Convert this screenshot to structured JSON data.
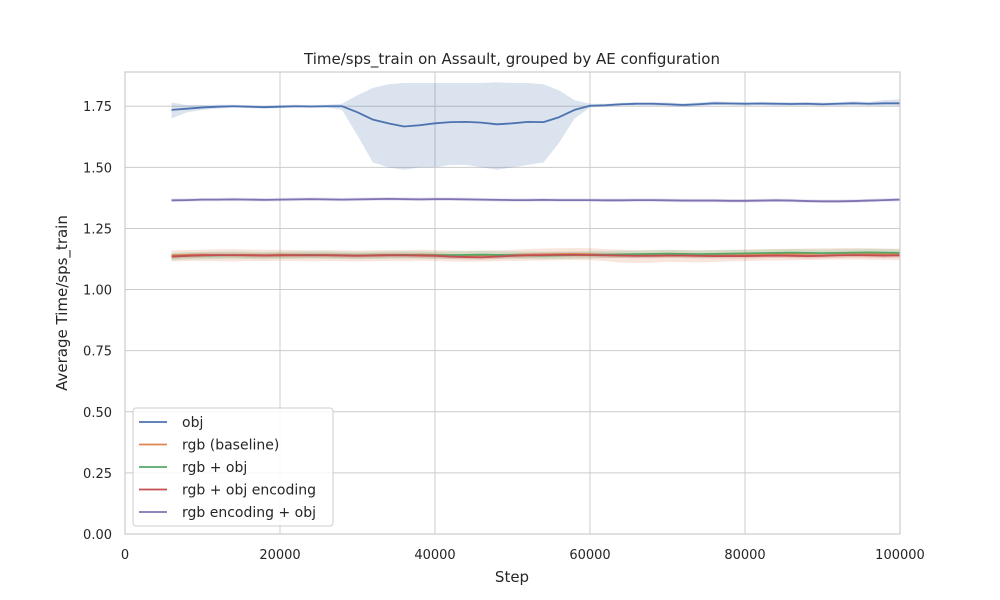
{
  "chart_data": {
    "type": "line",
    "title": "Time/sps_train on Assault, grouped by AE configuration",
    "xlabel": "Step",
    "ylabel": "Average Time/sps_train",
    "xlim": [
      0,
      100000
    ],
    "ylim": [
      0,
      1.89
    ],
    "xticks": [
      0,
      20000,
      40000,
      60000,
      80000,
      100000
    ],
    "xtick_labels": [
      "0",
      "20000",
      "40000",
      "60000",
      "80000",
      "100000"
    ],
    "yticks": [
      0.0,
      0.25,
      0.5,
      0.75,
      1.0,
      1.25,
      1.5,
      1.75
    ],
    "ytick_labels": [
      "0.00",
      "0.25",
      "0.50",
      "0.75",
      "1.00",
      "1.25",
      "1.50",
      "1.75"
    ],
    "grid": true,
    "legend_position": "lower-left",
    "x": [
      6000,
      8000,
      10000,
      12000,
      14000,
      16000,
      18000,
      20000,
      22000,
      24000,
      26000,
      28000,
      30000,
      32000,
      34000,
      36000,
      38000,
      40000,
      42000,
      44000,
      46000,
      48000,
      50000,
      52000,
      54000,
      56000,
      58000,
      60000,
      62000,
      64000,
      66000,
      68000,
      70000,
      72000,
      74000,
      76000,
      78000,
      80000,
      82000,
      84000,
      86000,
      88000,
      90000,
      92000,
      94000,
      96000,
      98000,
      100000
    ],
    "series": [
      {
        "name": "obj",
        "color": "#4c72b0",
        "values": [
          1.735,
          1.74,
          1.745,
          1.748,
          1.75,
          1.748,
          1.746,
          1.748,
          1.75,
          1.749,
          1.75,
          1.75,
          1.725,
          1.695,
          1.68,
          1.667,
          1.672,
          1.68,
          1.685,
          1.686,
          1.683,
          1.676,
          1.68,
          1.686,
          1.685,
          1.705,
          1.735,
          1.752,
          1.754,
          1.758,
          1.76,
          1.76,
          1.758,
          1.755,
          1.758,
          1.762,
          1.761,
          1.76,
          1.761,
          1.76,
          1.759,
          1.76,
          1.758,
          1.76,
          1.762,
          1.76,
          1.762,
          1.762
        ],
        "lower": [
          1.7,
          1.725,
          1.735,
          1.74,
          1.745,
          1.742,
          1.74,
          1.742,
          1.745,
          1.744,
          1.745,
          1.735,
          1.63,
          1.52,
          1.5,
          1.49,
          1.5,
          1.5,
          1.51,
          1.51,
          1.5,
          1.49,
          1.5,
          1.51,
          1.52,
          1.6,
          1.7,
          1.745,
          1.748,
          1.752,
          1.753,
          1.752,
          1.75,
          1.748,
          1.75,
          1.755,
          1.754,
          1.752,
          1.754,
          1.752,
          1.752,
          1.753,
          1.75,
          1.752,
          1.754,
          1.752,
          1.752,
          1.752
        ],
        "upper": [
          1.765,
          1.755,
          1.755,
          1.756,
          1.756,
          1.754,
          1.752,
          1.755,
          1.756,
          1.755,
          1.756,
          1.76,
          1.795,
          1.825,
          1.84,
          1.845,
          1.845,
          1.845,
          1.845,
          1.845,
          1.845,
          1.848,
          1.845,
          1.845,
          1.84,
          1.815,
          1.775,
          1.76,
          1.76,
          1.764,
          1.767,
          1.767,
          1.765,
          1.762,
          1.765,
          1.77,
          1.768,
          1.767,
          1.768,
          1.767,
          1.767,
          1.768,
          1.765,
          1.767,
          1.77,
          1.768,
          1.775,
          1.778
        ]
      },
      {
        "name": "rgb (baseline)",
        "color": "#dd8452",
        "values": [
          1.14,
          1.142,
          1.143,
          1.141,
          1.14,
          1.142,
          1.141,
          1.143,
          1.142,
          1.141,
          1.142,
          1.141,
          1.14,
          1.141,
          1.142,
          1.141,
          1.143,
          1.142,
          1.14,
          1.139,
          1.14,
          1.141,
          1.142,
          1.143,
          1.144,
          1.145,
          1.146,
          1.145,
          1.142,
          1.14,
          1.139,
          1.14,
          1.141,
          1.14,
          1.139,
          1.14,
          1.141,
          1.142,
          1.143,
          1.144,
          1.145,
          1.146,
          1.147,
          1.148,
          1.148,
          1.147,
          1.146,
          1.145
        ],
        "lower": [
          1.115,
          1.117,
          1.118,
          1.116,
          1.115,
          1.117,
          1.116,
          1.118,
          1.117,
          1.116,
          1.117,
          1.116,
          1.115,
          1.116,
          1.117,
          1.116,
          1.118,
          1.117,
          1.115,
          1.114,
          1.115,
          1.116,
          1.117,
          1.118,
          1.119,
          1.12,
          1.121,
          1.12,
          1.117,
          1.11,
          1.109,
          1.11,
          1.113,
          1.112,
          1.111,
          1.112,
          1.116,
          1.117,
          1.118,
          1.119,
          1.12,
          1.121,
          1.122,
          1.123,
          1.123,
          1.122,
          1.121,
          1.12
        ],
        "upper": [
          1.16,
          1.162,
          1.163,
          1.165,
          1.166,
          1.164,
          1.163,
          1.163,
          1.162,
          1.161,
          1.162,
          1.161,
          1.16,
          1.161,
          1.162,
          1.161,
          1.163,
          1.162,
          1.16,
          1.159,
          1.16,
          1.161,
          1.163,
          1.166,
          1.168,
          1.169,
          1.17,
          1.169,
          1.166,
          1.163,
          1.161,
          1.162,
          1.163,
          1.162,
          1.161,
          1.162,
          1.163,
          1.164,
          1.165,
          1.166,
          1.167,
          1.168,
          1.169,
          1.17,
          1.17,
          1.169,
          1.168,
          1.167
        ]
      },
      {
        "name": "rgb + obj",
        "color": "#55a868",
        "values": [
          1.135,
          1.138,
          1.139,
          1.14,
          1.141,
          1.14,
          1.139,
          1.14,
          1.141,
          1.142,
          1.141,
          1.14,
          1.139,
          1.14,
          1.141,
          1.142,
          1.141,
          1.14,
          1.141,
          1.142,
          1.143,
          1.142,
          1.141,
          1.14,
          1.139,
          1.14,
          1.141,
          1.142,
          1.143,
          1.144,
          1.145,
          1.146,
          1.147,
          1.146,
          1.145,
          1.146,
          1.147,
          1.148,
          1.149,
          1.15,
          1.151,
          1.15,
          1.149,
          1.15,
          1.151,
          1.152,
          1.151,
          1.15
        ],
        "lower": [
          1.12,
          1.123,
          1.124,
          1.125,
          1.126,
          1.125,
          1.124,
          1.125,
          1.126,
          1.127,
          1.126,
          1.125,
          1.124,
          1.125,
          1.126,
          1.127,
          1.126,
          1.125,
          1.126,
          1.127,
          1.128,
          1.127,
          1.126,
          1.125,
          1.124,
          1.125,
          1.126,
          1.127,
          1.128,
          1.129,
          1.13,
          1.131,
          1.132,
          1.131,
          1.13,
          1.131,
          1.132,
          1.133,
          1.134,
          1.135,
          1.136,
          1.135,
          1.134,
          1.135,
          1.136,
          1.137,
          1.136,
          1.135
        ],
        "upper": [
          1.15,
          1.153,
          1.154,
          1.155,
          1.156,
          1.155,
          1.154,
          1.155,
          1.156,
          1.157,
          1.156,
          1.155,
          1.154,
          1.155,
          1.156,
          1.157,
          1.156,
          1.155,
          1.156,
          1.157,
          1.158,
          1.157,
          1.156,
          1.155,
          1.154,
          1.155,
          1.156,
          1.157,
          1.158,
          1.159,
          1.16,
          1.161,
          1.162,
          1.161,
          1.16,
          1.161,
          1.162,
          1.163,
          1.164,
          1.165,
          1.166,
          1.165,
          1.164,
          1.165,
          1.166,
          1.167,
          1.166,
          1.165
        ]
      },
      {
        "name": "rgb + obj encoding",
        "color": "#c44e52",
        "values": [
          1.135,
          1.138,
          1.14,
          1.141,
          1.141,
          1.14,
          1.139,
          1.14,
          1.14,
          1.14,
          1.14,
          1.139,
          1.138,
          1.139,
          1.14,
          1.14,
          1.139,
          1.138,
          1.135,
          1.133,
          1.132,
          1.135,
          1.138,
          1.14,
          1.141,
          1.142,
          1.142,
          1.141,
          1.14,
          1.139,
          1.138,
          1.138,
          1.139,
          1.139,
          1.138,
          1.137,
          1.137,
          1.137,
          1.138,
          1.139,
          1.138,
          1.137,
          1.138,
          1.14,
          1.141,
          1.14,
          1.139,
          1.14
        ],
        "lower": [
          1.125,
          1.128,
          1.13,
          1.131,
          1.131,
          1.13,
          1.129,
          1.13,
          1.13,
          1.13,
          1.13,
          1.129,
          1.128,
          1.129,
          1.13,
          1.13,
          1.129,
          1.128,
          1.125,
          1.123,
          1.122,
          1.125,
          1.128,
          1.13,
          1.131,
          1.132,
          1.132,
          1.131,
          1.13,
          1.129,
          1.128,
          1.128,
          1.129,
          1.129,
          1.128,
          1.127,
          1.127,
          1.127,
          1.128,
          1.129,
          1.128,
          1.127,
          1.128,
          1.13,
          1.131,
          1.13,
          1.129,
          1.13
        ],
        "upper": [
          1.145,
          1.148,
          1.15,
          1.151,
          1.151,
          1.15,
          1.149,
          1.15,
          1.15,
          1.15,
          1.15,
          1.149,
          1.148,
          1.149,
          1.15,
          1.15,
          1.149,
          1.148,
          1.145,
          1.143,
          1.142,
          1.145,
          1.148,
          1.15,
          1.151,
          1.152,
          1.152,
          1.151,
          1.15,
          1.149,
          1.148,
          1.148,
          1.149,
          1.149,
          1.148,
          1.147,
          1.147,
          1.147,
          1.148,
          1.149,
          1.148,
          1.147,
          1.148,
          1.15,
          1.151,
          1.15,
          1.149,
          1.15
        ]
      },
      {
        "name": "rgb encoding + obj",
        "color": "#8172b3",
        "values": [
          1.365,
          1.366,
          1.368,
          1.368,
          1.369,
          1.368,
          1.367,
          1.368,
          1.369,
          1.37,
          1.369,
          1.368,
          1.369,
          1.37,
          1.371,
          1.37,
          1.369,
          1.37,
          1.37,
          1.369,
          1.368,
          1.367,
          1.366,
          1.366,
          1.367,
          1.366,
          1.366,
          1.366,
          1.365,
          1.365,
          1.366,
          1.366,
          1.365,
          1.364,
          1.364,
          1.364,
          1.363,
          1.363,
          1.364,
          1.365,
          1.364,
          1.362,
          1.361,
          1.361,
          1.362,
          1.364,
          1.366,
          1.368
        ],
        "lower": [
          1.358,
          1.359,
          1.361,
          1.361,
          1.362,
          1.361,
          1.36,
          1.361,
          1.362,
          1.363,
          1.362,
          1.361,
          1.362,
          1.363,
          1.364,
          1.363,
          1.362,
          1.363,
          1.363,
          1.362,
          1.361,
          1.36,
          1.359,
          1.359,
          1.36,
          1.359,
          1.359,
          1.359,
          1.358,
          1.358,
          1.359,
          1.359,
          1.358,
          1.357,
          1.357,
          1.357,
          1.356,
          1.356,
          1.357,
          1.358,
          1.357,
          1.355,
          1.354,
          1.354,
          1.355,
          1.357,
          1.359,
          1.361
        ],
        "upper": [
          1.372,
          1.373,
          1.375,
          1.375,
          1.376,
          1.375,
          1.374,
          1.375,
          1.376,
          1.377,
          1.376,
          1.375,
          1.376,
          1.377,
          1.378,
          1.377,
          1.376,
          1.377,
          1.377,
          1.376,
          1.375,
          1.374,
          1.373,
          1.373,
          1.374,
          1.373,
          1.373,
          1.373,
          1.372,
          1.372,
          1.373,
          1.373,
          1.372,
          1.371,
          1.371,
          1.371,
          1.37,
          1.37,
          1.371,
          1.372,
          1.371,
          1.369,
          1.368,
          1.368,
          1.369,
          1.371,
          1.373,
          1.375
        ]
      }
    ]
  }
}
